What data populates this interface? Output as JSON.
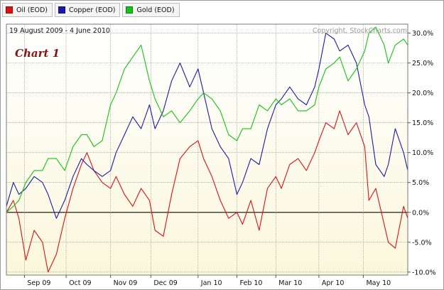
{
  "legend": {
    "items": [
      {
        "label": "Oil (EOD)",
        "color": "#e01010"
      },
      {
        "label": "Copper (EOD)",
        "color": "#1a1aa8"
      },
      {
        "label": "Gold (EOD)",
        "color": "#14c414"
      }
    ]
  },
  "header": {
    "date_range": "19 August 2009 - 4 June 2010",
    "copyright": "Copyright, StockCharts.com",
    "chart_label": "Chart 1"
  },
  "colors": {
    "plot_background_top": "#ffffff",
    "plot_background_bottom": "#fbf7dc",
    "grid": "#8a8a8a",
    "zero_line": "#222222"
  },
  "chart_data": {
    "type": "line",
    "title": "",
    "xlabel": "",
    "ylabel": "",
    "ylim": [
      -10.5,
      31.5
    ],
    "y_axis_side": "right",
    "grid": true,
    "legend_position": "top-left",
    "y_ticks": [
      -10,
      -5,
      0,
      5,
      10,
      15,
      20,
      25,
      30
    ],
    "y_tick_labels": [
      "-10.0%",
      "-5.0%",
      "0.0%",
      "5.0%",
      "10.0%",
      "15.0%",
      "20.0%",
      "25.0%",
      "30.0%"
    ],
    "x_ticks": [
      "2009-09-01",
      "2009-10-01",
      "2009-11-02",
      "2009-12-01",
      "2010-01-04",
      "2010-02-01",
      "2010-03-01",
      "2010-04-01",
      "2010-05-03"
    ],
    "x_tick_labels": [
      "Sep 09",
      "Oct 09",
      "Nov 09",
      "Dec 09",
      "Jan 10",
      "Feb 10",
      "Mar 10",
      "Apr 10",
      "May 10"
    ],
    "xlim": [
      "2009-08-19",
      "2010-06-04"
    ],
    "series": [
      {
        "name": "Oil (EOD)",
        "color": "#e01010",
        "x": [
          "2009-08-19",
          "2009-08-24",
          "2009-08-28",
          "2009-09-02",
          "2009-09-08",
          "2009-09-14",
          "2009-09-18",
          "2009-09-24",
          "2009-09-30",
          "2009-10-06",
          "2009-10-12",
          "2009-10-16",
          "2009-10-21",
          "2009-10-27",
          "2009-11-02",
          "2009-11-06",
          "2009-11-12",
          "2009-11-18",
          "2009-11-24",
          "2009-11-30",
          "2009-12-04",
          "2009-12-10",
          "2009-12-16",
          "2009-12-22",
          "2009-12-29",
          "2010-01-04",
          "2010-01-08",
          "2010-01-14",
          "2010-01-20",
          "2010-01-26",
          "2010-02-01",
          "2010-02-05",
          "2010-02-11",
          "2010-02-17",
          "2010-02-23",
          "2010-03-01",
          "2010-03-05",
          "2010-03-11",
          "2010-03-17",
          "2010-03-23",
          "2010-03-29",
          "2010-04-01",
          "2010-04-06",
          "2010-04-12",
          "2010-04-16",
          "2010-04-22",
          "2010-04-28",
          "2010-05-04",
          "2010-05-07",
          "2010-05-12",
          "2010-05-18",
          "2010-05-21",
          "2010-05-26",
          "2010-06-01",
          "2010-06-04"
        ],
        "values": [
          0,
          2,
          -1,
          -8,
          -3,
          -5,
          -10,
          -7,
          -1,
          4,
          8,
          10,
          7,
          5,
          4,
          6,
          3,
          1,
          4,
          2,
          -3,
          -4,
          3,
          9,
          11,
          12,
          9,
          6,
          2,
          -1,
          0,
          -2,
          2,
          -3,
          4,
          6,
          4,
          8,
          9,
          7,
          10,
          12,
          15,
          14,
          17,
          13,
          15,
          11,
          2,
          4,
          -2,
          -5,
          -6,
          1,
          -1
        ]
      },
      {
        "name": "Copper (EOD)",
        "color": "#1a1aa8",
        "x": [
          "2009-08-19",
          "2009-08-24",
          "2009-08-28",
          "2009-09-02",
          "2009-09-08",
          "2009-09-14",
          "2009-09-18",
          "2009-09-24",
          "2009-09-30",
          "2009-10-06",
          "2009-10-12",
          "2009-10-16",
          "2009-10-21",
          "2009-10-27",
          "2009-11-02",
          "2009-11-06",
          "2009-11-12",
          "2009-11-18",
          "2009-11-24",
          "2009-11-30",
          "2009-12-04",
          "2009-12-10",
          "2009-12-16",
          "2009-12-22",
          "2009-12-29",
          "2010-01-04",
          "2010-01-08",
          "2010-01-14",
          "2010-01-20",
          "2010-01-26",
          "2010-02-01",
          "2010-02-05",
          "2010-02-11",
          "2010-02-17",
          "2010-02-23",
          "2010-03-01",
          "2010-03-05",
          "2010-03-11",
          "2010-03-17",
          "2010-03-23",
          "2010-03-29",
          "2010-04-01",
          "2010-04-06",
          "2010-04-12",
          "2010-04-16",
          "2010-04-22",
          "2010-04-28",
          "2010-05-04",
          "2010-05-07",
          "2010-05-12",
          "2010-05-18",
          "2010-05-21",
          "2010-05-26",
          "2010-06-01",
          "2010-06-04"
        ],
        "values": [
          1,
          5,
          3,
          4,
          6,
          5,
          3,
          -1,
          2,
          6,
          9,
          8,
          7,
          6,
          7,
          10,
          13,
          16,
          14,
          18,
          14,
          17,
          22,
          25,
          21,
          24,
          20,
          14,
          11,
          9,
          3,
          5,
          9,
          8,
          14,
          18,
          19,
          21,
          19,
          18,
          21,
          24,
          30,
          29,
          27,
          28,
          25,
          18,
          16,
          8,
          6,
          8,
          14,
          10,
          7
        ]
      },
      {
        "name": "Gold (EOD)",
        "color": "#14c414",
        "x": [
          "2009-08-19",
          "2009-08-24",
          "2009-08-28",
          "2009-09-02",
          "2009-09-08",
          "2009-09-14",
          "2009-09-18",
          "2009-09-24",
          "2009-09-30",
          "2009-10-06",
          "2009-10-12",
          "2009-10-16",
          "2009-10-21",
          "2009-10-27",
          "2009-11-02",
          "2009-11-06",
          "2009-11-12",
          "2009-11-18",
          "2009-11-24",
          "2009-11-30",
          "2009-12-04",
          "2009-12-10",
          "2009-12-16",
          "2009-12-22",
          "2009-12-29",
          "2010-01-04",
          "2010-01-08",
          "2010-01-14",
          "2010-01-20",
          "2010-01-26",
          "2010-02-01",
          "2010-02-05",
          "2010-02-11",
          "2010-02-17",
          "2010-02-23",
          "2010-03-01",
          "2010-03-05",
          "2010-03-11",
          "2010-03-17",
          "2010-03-23",
          "2010-03-29",
          "2010-04-01",
          "2010-04-06",
          "2010-04-12",
          "2010-04-16",
          "2010-04-22",
          "2010-04-28",
          "2010-05-04",
          "2010-05-07",
          "2010-05-12",
          "2010-05-18",
          "2010-05-21",
          "2010-05-26",
          "2010-06-01",
          "2010-06-04"
        ],
        "values": [
          0,
          1,
          2,
          5,
          7,
          7,
          9,
          9,
          7,
          11,
          13,
          13,
          11,
          12,
          18,
          20,
          24,
          26,
          28,
          22,
          19,
          16,
          17,
          15,
          17,
          19,
          20,
          19,
          17,
          13,
          12,
          14,
          14,
          18,
          17,
          19,
          18,
          19,
          17,
          17,
          18,
          21,
          24,
          25,
          26,
          22,
          24,
          27,
          30,
          31,
          28,
          25,
          28,
          29,
          28
        ]
      }
    ]
  }
}
